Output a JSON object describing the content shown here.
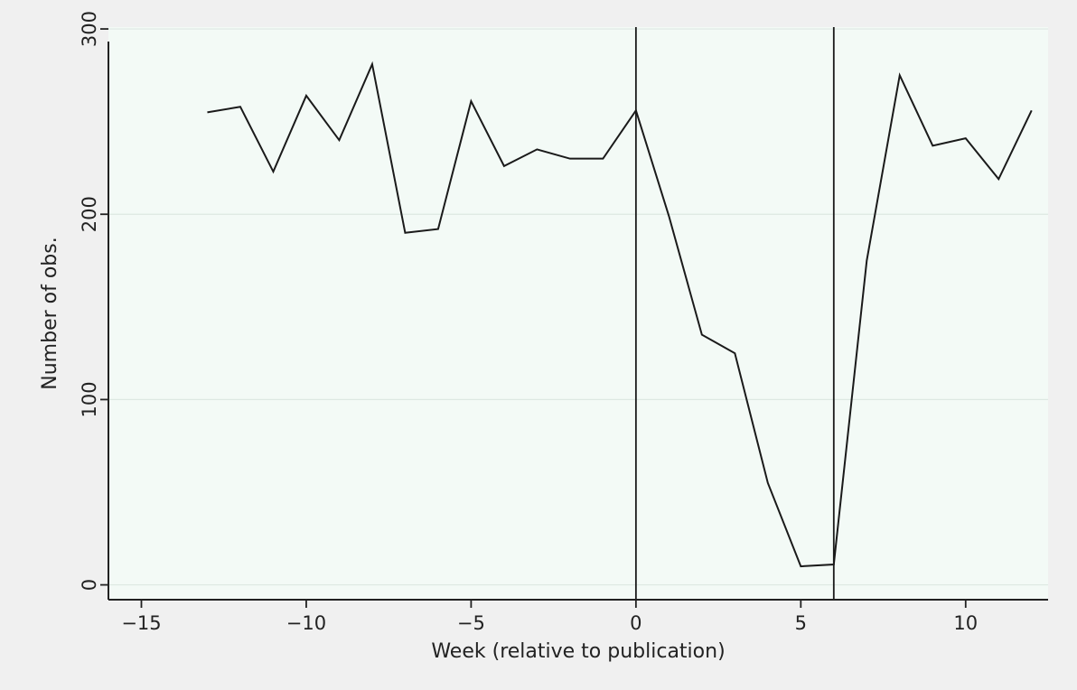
{
  "chart_data": {
    "type": "line",
    "title": "",
    "xlabel": "Week (relative to publication)",
    "ylabel": "Number of obs.",
    "xlim": [
      -16,
      12.5
    ],
    "ylim": [
      -8,
      301
    ],
    "x_ticks": [
      -15,
      -10,
      -5,
      0,
      5,
      10
    ],
    "x_tick_labels": [
      "−15",
      "−10",
      "−5",
      "0",
      "5",
      "10"
    ],
    "y_ticks": [
      0,
      100,
      200,
      300
    ],
    "y_tick_labels": [
      "0",
      "100",
      "200",
      "300"
    ],
    "grid": "horizontal",
    "legend": "none",
    "reference_lines_x": [
      0,
      6
    ],
    "series": [
      {
        "x": [
          -13,
          -12,
          -11,
          -10,
          -9,
          -8,
          -7,
          -6,
          -5,
          -4,
          -3,
          -2,
          -1,
          0,
          1,
          2,
          3,
          4,
          5,
          6,
          7,
          8,
          9,
          10,
          11,
          12
        ],
        "values": [
          255,
          258,
          223,
          264,
          240,
          281,
          190,
          192,
          261,
          226,
          235,
          230,
          230,
          256,
          199,
          135,
          125,
          55,
          10,
          11,
          175,
          275,
          237,
          241,
          219,
          256
        ]
      }
    ],
    "colors": {
      "page_background": "#f0f0f0",
      "plot_background": "#f3faf6",
      "line": "#1a1a1a",
      "grid": "#dde8e2",
      "axis": "#222222"
    }
  }
}
